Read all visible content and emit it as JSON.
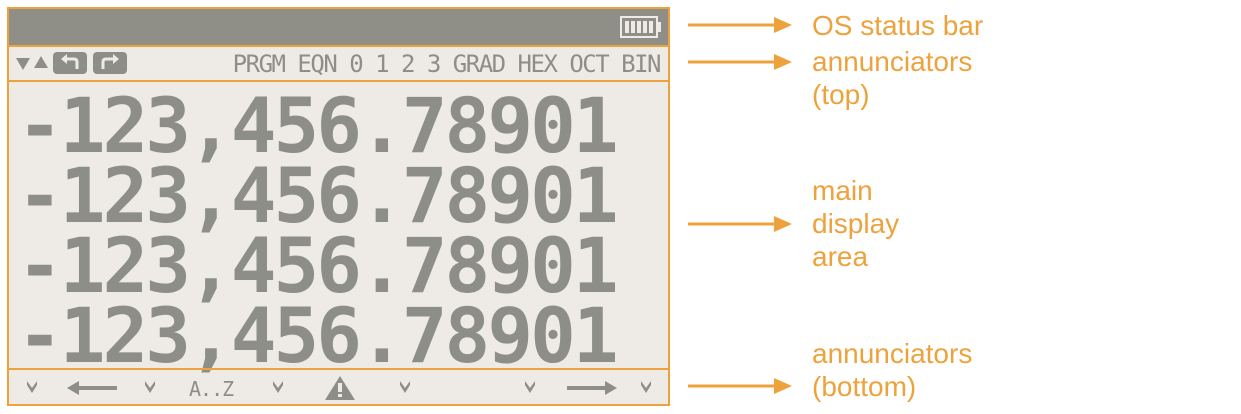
{
  "annunciators_top": {
    "text": "PRGM EQN 0 1 2 3 GRAD HEX OCT BIN"
  },
  "display": {
    "rows": [
      "-123,456.78901",
      "-123,456.78901",
      "-123,456.78901",
      "-123,456.78901"
    ]
  },
  "annunciators_bottom": {
    "range_label": "A..Z"
  },
  "labels": {
    "status_bar": "OS status bar",
    "annun_top_1": "annunciators",
    "annun_top_2": "(top)",
    "main_1": "main",
    "main_2": "display",
    "main_3": "area",
    "annun_bot_1": "annunciators",
    "annun_bot_2": "(bottom)"
  },
  "colors": {
    "accent": "#eea23c",
    "lcd_background": "#eeebe6",
    "lcd_ink": "#8e8e88",
    "status_bar": "#8f8f88"
  }
}
